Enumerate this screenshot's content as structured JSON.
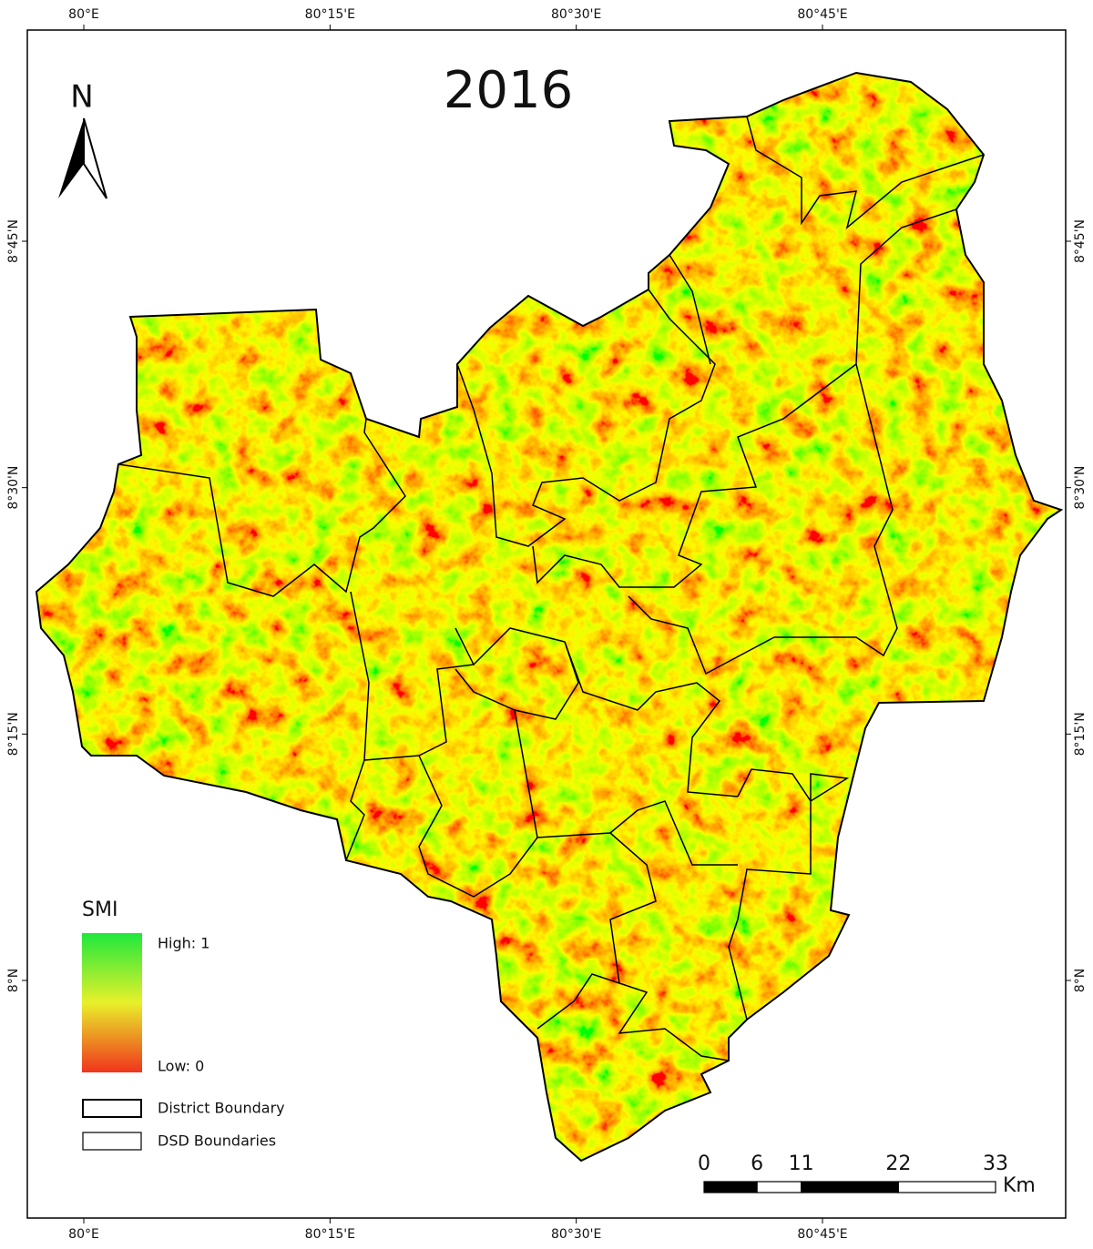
{
  "title": "2016",
  "north": "N",
  "graticule": {
    "lon": [
      {
        "value": 80,
        "label": "80°E"
      },
      {
        "value": 80.25,
        "label": "80°15'E"
      },
      {
        "value": 80.5,
        "label": "80°30'E"
      },
      {
        "value": 80.75,
        "label": "80°45'E"
      }
    ],
    "lat": [
      {
        "value": 8.75,
        "label": "8°45'N"
      },
      {
        "value": 8.5,
        "label": "8°30'N"
      },
      {
        "value": 8.25,
        "label": "8°15'N"
      },
      {
        "value": 8,
        "label": "8°N"
      }
    ]
  },
  "legend": {
    "title": "SMI",
    "high": "High: 1",
    "low": "Low: 0",
    "items": [
      "District Boundary",
      "DSD Boundaries"
    ]
  },
  "scale_bar": {
    "ticks": [
      0,
      6,
      11,
      22,
      33
    ],
    "unit": "Km"
  }
}
